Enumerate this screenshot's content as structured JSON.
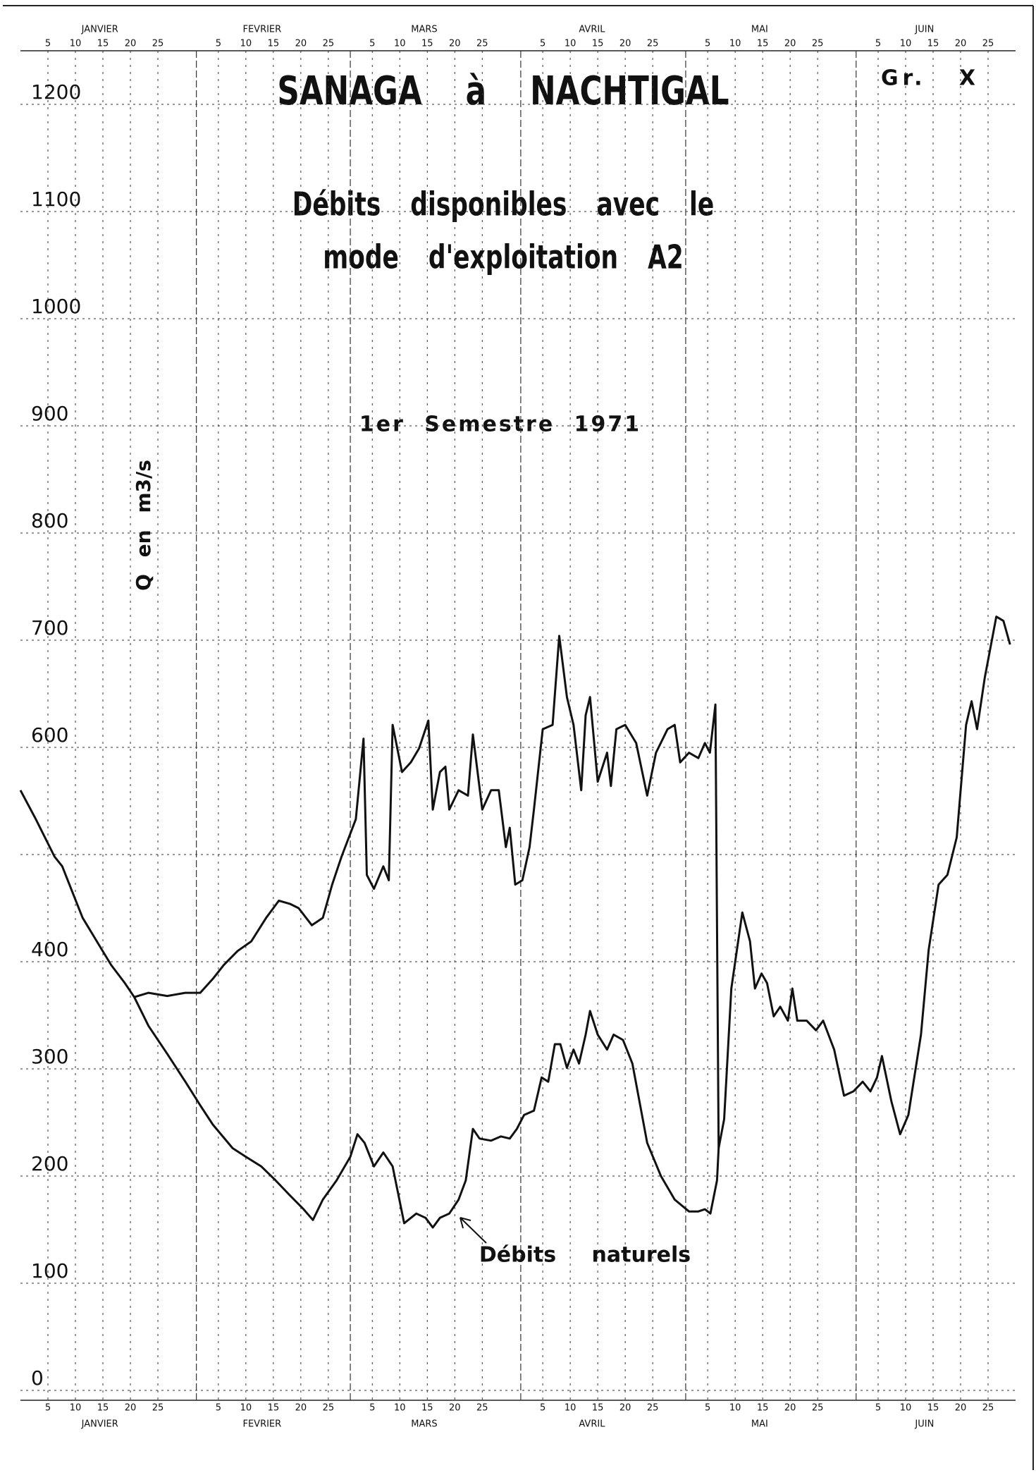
{
  "chart_data": {
    "type": "line",
    "title": "SANAGA à NACHTIGAL",
    "graph_number": "Gr. X",
    "subtitle": [
      "Débits disponibles avec le",
      "mode d'exploitation A2"
    ],
    "period": "1er Semestre 1971",
    "y_label": "Q en m3/s",
    "xlim": [
      0,
      181
    ],
    "ylim": [
      0,
      1250
    ],
    "yticks": [
      0,
      100,
      200,
      300,
      400,
      500,
      600,
      700,
      800,
      900,
      1000,
      1100,
      1200
    ],
    "ytick_labels_shown": [
      true,
      true,
      true,
      true,
      true,
      false,
      true,
      true,
      true,
      true,
      true,
      true,
      true
    ],
    "grid": true,
    "month_ticks": [
      {
        "value": 1,
        "label": "JANVIER"
      },
      {
        "value": 32,
        "label": "FEVRIER"
      },
      {
        "value": 60,
        "label": "MARS"
      },
      {
        "value": 91,
        "label": "AVRIL"
      },
      {
        "value": 121,
        "label": "MAI"
      },
      {
        "value": 152,
        "label": "JUIN"
      }
    ],
    "xticks": [
      5,
      10,
      15,
      20,
      25,
      {
        "value": 36,
        "label": "5"
      },
      {
        "value": 41,
        "label": "10"
      },
      {
        "value": 46,
        "label": "15"
      },
      {
        "value": 51,
        "label": "20"
      },
      {
        "value": 56,
        "label": "25"
      },
      {
        "value": 64,
        "label": "5"
      },
      {
        "value": 69,
        "label": "10"
      },
      {
        "value": 74,
        "label": "15"
      },
      {
        "value": 79,
        "label": "20"
      },
      {
        "value": 84,
        "label": "25"
      },
      {
        "value": 95,
        "label": "5"
      },
      {
        "value": 100,
        "label": "10"
      },
      {
        "value": 105,
        "label": "15"
      },
      {
        "value": 110,
        "label": "20"
      },
      {
        "value": 115,
        "label": "25"
      },
      {
        "value": 125,
        "label": "5"
      },
      {
        "value": 130,
        "label": "10"
      },
      {
        "value": 135,
        "label": "15"
      },
      {
        "value": 140,
        "label": "20"
      },
      {
        "value": 145,
        "label": "25"
      },
      {
        "value": 156,
        "label": "5"
      },
      {
        "value": 161,
        "label": "10"
      },
      {
        "value": 166,
        "label": "15"
      },
      {
        "value": 171,
        "label": "20"
      },
      {
        "value": 176,
        "label": "25"
      }
    ],
    "series": [
      {
        "color": "#111111",
        "x": [
          0,
          2.8,
          6.2,
          7.6,
          9.6,
          11.3,
          13.9,
          16.5,
          19,
          20.7,
          23.3,
          26.7,
          30,
          32.7,
          35,
          37,
          39.5,
          42,
          44.7,
          47,
          49,
          50.6,
          53,
          55,
          56.7,
          58.4,
          61,
          62.4,
          63,
          64.3,
          66,
          67,
          67.7,
          69.4,
          71,
          72.5,
          74.2,
          75,
          76.3,
          77.3,
          78,
          79.7,
          81.4,
          82.3,
          84,
          85.6,
          87,
          88.3,
          89,
          90,
          91.3,
          92.6,
          93.4,
          95,
          96.8,
          98,
          99.4,
          100.6,
          102,
          102.8,
          103.6,
          105,
          106.7,
          107.4,
          108.4,
          110,
          112,
          114,
          115.6,
          117.7,
          119,
          120,
          121.6,
          123.3,
          124.5,
          125.4,
          126.4,
          127,
          128,
          129.3,
          131.3,
          132.7,
          133.6,
          134.8,
          135.8,
          137,
          138.2,
          139.6,
          140.4,
          141.3,
          143,
          144.7,
          146,
          148,
          149.8,
          151.5,
          153.2,
          154.6,
          155.8,
          156.7,
          158.4,
          160,
          161.5,
          162.7,
          163.8,
          165.2,
          167,
          168.6,
          170.3,
          172,
          173,
          174,
          175.4,
          177.5,
          178.8,
          180
        ],
        "values": [
          560,
          533,
          498,
          489,
          463,
          441,
          419,
          397,
          380,
          367,
          371,
          368,
          371,
          371,
          384,
          397,
          410,
          419,
          441,
          457,
          454,
          450,
          434,
          441,
          472,
          498,
          533,
          608,
          481,
          468,
          489,
          476,
          621,
          577,
          586,
          599,
          625,
          542,
          577,
          582,
          542,
          560,
          555,
          612,
          542,
          560,
          560,
          507,
          525,
          472,
          476,
          507,
          542,
          617,
          621,
          704,
          647,
          621,
          560,
          630,
          647,
          568,
          595,
          564,
          617,
          621,
          604,
          555,
          595,
          617,
          621,
          586,
          595,
          590,
          604,
          595,
          640,
          226,
          253,
          375,
          446,
          419,
          375,
          389,
          380,
          349,
          358,
          345,
          375,
          345,
          345,
          336,
          345,
          318,
          275,
          279,
          288,
          279,
          292,
          312,
          270,
          239,
          257,
          296,
          332,
          411,
          472,
          481,
          516,
          621,
          643,
          617,
          665,
          722,
          718,
          696
        ]
      },
      {
        "name": "Débits naturels",
        "color": "#111111",
        "x": [
          20.7,
          23.3,
          26.7,
          30,
          32.7,
          35,
          38.6,
          41,
          43.8,
          46.4,
          49,
          51.5,
          53.2,
          55,
          57.5,
          60,
          61.3,
          62.6,
          64.3,
          66,
          67.7,
          69.8,
          72,
          73.7,
          75,
          76.3,
          78,
          79.7,
          81,
          82.3,
          83.5,
          85.6,
          87.4,
          89,
          90.3,
          91.6,
          93.4,
          94.8,
          96,
          97.2,
          98.2,
          99.4,
          100.6,
          101.6,
          102.8,
          103.6,
          105,
          106.7,
          107.9,
          109.6,
          111.3,
          114,
          116.5,
          119,
          121.6,
          123.3,
          124.5,
          125.5,
          126.7,
          127
        ],
        "values": [
          367,
          340,
          314,
          288,
          266,
          248,
          226,
          218,
          209,
          196,
          182,
          169,
          159,
          178,
          196,
          218,
          239,
          231,
          209,
          222,
          209,
          156,
          165,
          161,
          152,
          161,
          165,
          178,
          196,
          244,
          235,
          233,
          237,
          235,
          244,
          257,
          261,
          292,
          288,
          323,
          323,
          301,
          318,
          305,
          332,
          354,
          332,
          318,
          332,
          327,
          305,
          231,
          200,
          178,
          167,
          167,
          169,
          165,
          196,
          226
        ]
      }
    ]
  }
}
